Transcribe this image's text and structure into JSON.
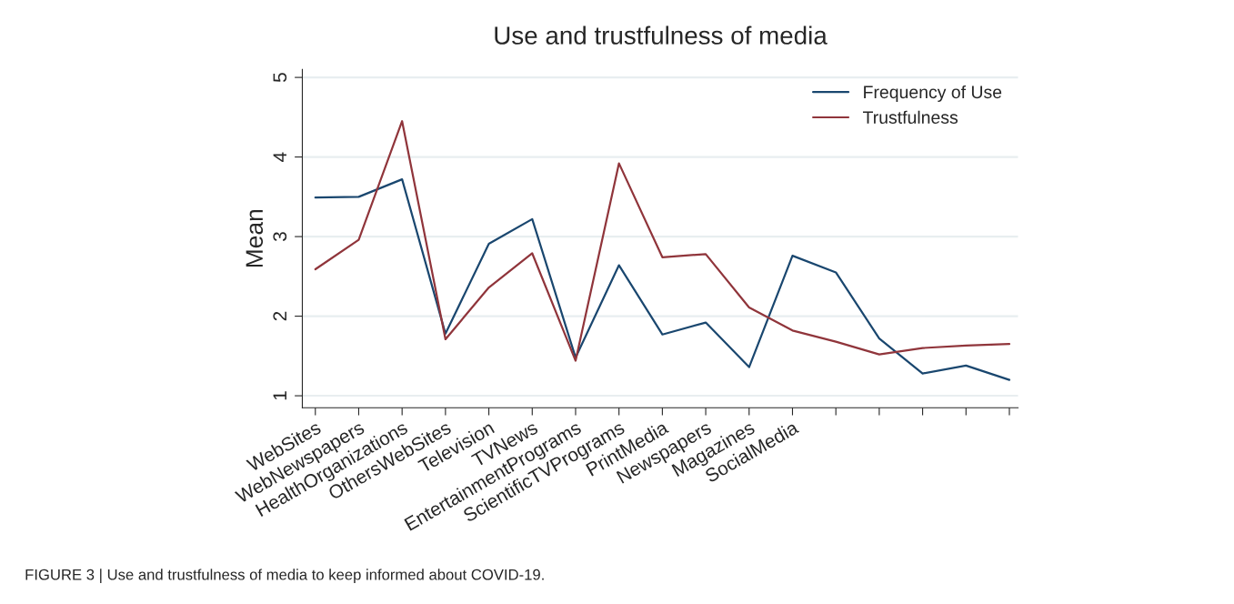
{
  "chart_data": {
    "type": "line",
    "title": "Use and trustfulness of media",
    "ylabel": "Mean",
    "categories": [
      "WebSites",
      "WebNewspapers",
      "HealthOrganizations",
      "OthersWebSites",
      "Television",
      "TVNews",
      "EntertainmentPrograms",
      "ScientificTVPrograms",
      "PrintMedia",
      "Newspapers",
      "Magazines",
      "SocialMedia",
      null,
      null,
      null,
      null,
      null
    ],
    "series": [
      {
        "name": "Frequency of Use",
        "color": "#1a476f",
        "values": [
          3.49,
          3.5,
          3.72,
          1.78,
          2.91,
          3.22,
          1.48,
          2.64,
          1.77,
          1.92,
          1.36,
          2.76,
          2.55,
          1.72,
          1.28,
          1.38,
          1.2
        ]
      },
      {
        "name": "Trustfulness",
        "color": "#90353b",
        "values": [
          2.59,
          2.96,
          4.45,
          1.71,
          2.36,
          2.79,
          1.44,
          3.92,
          2.74,
          2.78,
          2.11,
          1.82,
          1.68,
          1.52,
          1.6,
          1.63,
          1.65
        ]
      }
    ],
    "ylim": [
      0.85,
      5.1
    ],
    "yticks": [
      1,
      2,
      3,
      4,
      5
    ],
    "grid": "y",
    "legend": "top right",
    "marker": "none",
    "line_style": "solid",
    "annotations": [
      "FIGURE 3 | Use and trustfulness of media to keep informed about COVID-19."
    ]
  }
}
